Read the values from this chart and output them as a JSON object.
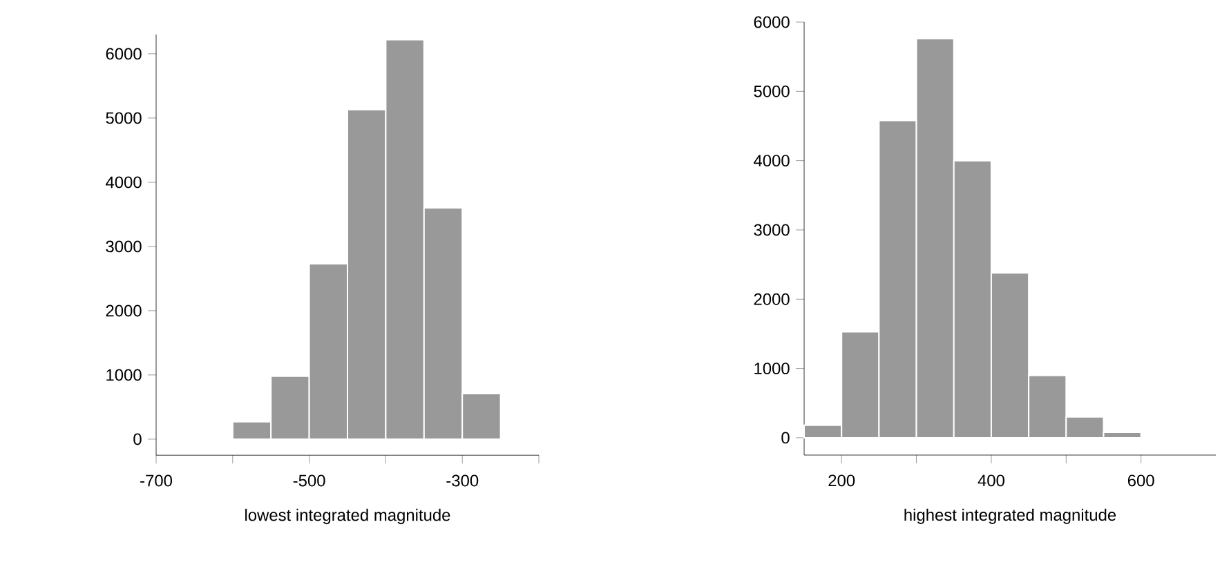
{
  "chart_data": [
    {
      "type": "histogram",
      "xlabel": "lowest integrated magnitude",
      "bins": [
        -700,
        -650,
        -600,
        -550,
        -500,
        -450,
        -400,
        -350,
        -300,
        -250,
        -200
      ],
      "values": [
        0,
        0,
        270,
        980,
        2730,
        5130,
        6220,
        3600,
        710,
        0
      ],
      "color": "#999999",
      "xlim": [
        -700,
        -200
      ],
      "xticks": [
        -700,
        {
          "value": -600,
          "label": null
        },
        -500,
        {
          "value": -400,
          "label": null
        },
        -300,
        {
          "value": -200,
          "label": null
        }
      ],
      "ylim": [
        -250,
        6300
      ],
      "yticks": [
        0,
        1000,
        2000,
        3000,
        4000,
        5000,
        6000
      ]
    },
    {
      "type": "histogram",
      "xlabel": "highest integrated magnitude",
      "bins": [
        150,
        200,
        250,
        300,
        350,
        400,
        450,
        500,
        550,
        600,
        650,
        700
      ],
      "values": [
        180,
        1530,
        4580,
        5760,
        4000,
        2380,
        900,
        300,
        80,
        0,
        0
      ],
      "color": "#999999",
      "xlim": [
        150,
        700
      ],
      "xticks": [
        200,
        {
          "value": 300,
          "label": null
        },
        400,
        {
          "value": 500,
          "label": null
        },
        600
      ],
      "ylim": [
        -250,
        6000
      ],
      "yticks": [
        0,
        1000,
        2000,
        3000,
        4000,
        5000,
        6000
      ]
    }
  ]
}
